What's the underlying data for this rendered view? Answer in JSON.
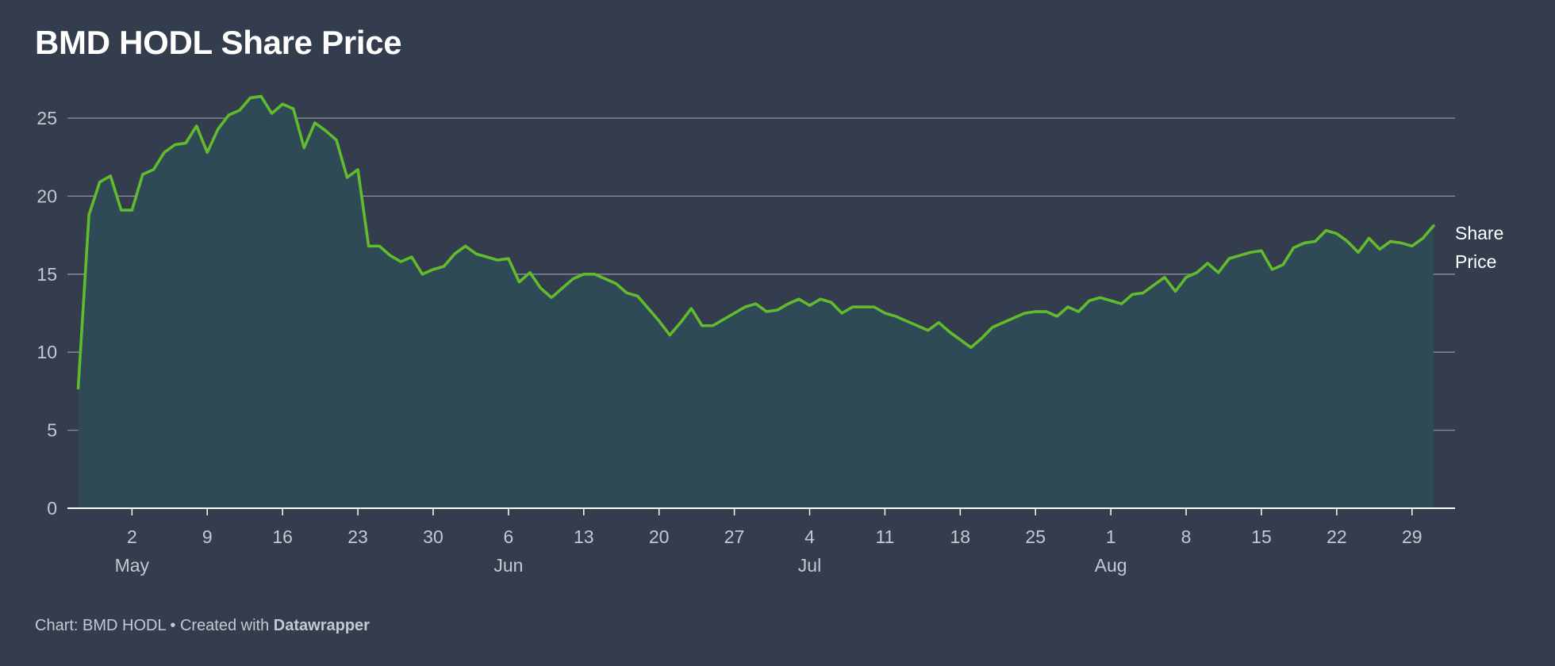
{
  "title": "BMD HODL Share Price",
  "footer": {
    "prefix": "Chart: BMD HODL • Created with ",
    "brand": "Datawrapper"
  },
  "colors": {
    "background": "#333d4e",
    "line": "#62bb2c",
    "area": "#2d4a56",
    "grid": "#8d9299",
    "axis_text": "#c4c9d1",
    "baseline": "#ffffff"
  },
  "chart_data": {
    "type": "area",
    "x_scale": "time",
    "year": 2022,
    "xlim": [
      "2022-04-26",
      "2022-09-02"
    ],
    "ylim": [
      0,
      25
    ],
    "yticks": [
      0,
      5,
      10,
      15,
      20,
      25
    ],
    "grid": true,
    "legend": "right-end",
    "x_tick_labels": [
      {
        "date": "2022-05-02",
        "label": "2",
        "month": "May"
      },
      {
        "date": "2022-05-09",
        "label": "9"
      },
      {
        "date": "2022-05-16",
        "label": "16"
      },
      {
        "date": "2022-05-23",
        "label": "23"
      },
      {
        "date": "2022-05-30",
        "label": "30"
      },
      {
        "date": "2022-06-06",
        "label": "6",
        "month": "Jun"
      },
      {
        "date": "2022-06-13",
        "label": "13"
      },
      {
        "date": "2022-06-20",
        "label": "20"
      },
      {
        "date": "2022-06-27",
        "label": "27"
      },
      {
        "date": "2022-07-04",
        "label": "4",
        "month": "Jul"
      },
      {
        "date": "2022-07-11",
        "label": "11"
      },
      {
        "date": "2022-07-18",
        "label": "18"
      },
      {
        "date": "2022-07-25",
        "label": "25"
      },
      {
        "date": "2022-08-01",
        "label": "1",
        "month": "Aug"
      },
      {
        "date": "2022-08-08",
        "label": "8"
      },
      {
        "date": "2022-08-15",
        "label": "15"
      },
      {
        "date": "2022-08-22",
        "label": "22"
      },
      {
        "date": "2022-08-29",
        "label": "29"
      }
    ],
    "series": [
      {
        "name": "Share Price",
        "label_lines": [
          "Share",
          "Price"
        ],
        "points": [
          [
            "2022-04-27",
            7.7
          ],
          [
            "2022-04-28",
            18.8
          ],
          [
            "2022-04-29",
            20.9
          ],
          [
            "2022-04-30",
            21.3
          ],
          [
            "2022-05-01",
            19.1
          ],
          [
            "2022-05-02",
            19.1
          ],
          [
            "2022-05-03",
            21.4
          ],
          [
            "2022-05-04",
            21.7
          ],
          [
            "2022-05-05",
            22.8
          ],
          [
            "2022-05-06",
            23.3
          ],
          [
            "2022-05-07",
            23.4
          ],
          [
            "2022-05-08",
            24.5
          ],
          [
            "2022-05-09",
            22.8
          ],
          [
            "2022-05-10",
            24.3
          ],
          [
            "2022-05-11",
            25.2
          ],
          [
            "2022-05-12",
            25.5
          ],
          [
            "2022-05-13",
            26.3
          ],
          [
            "2022-05-14",
            26.4
          ],
          [
            "2022-05-15",
            25.3
          ],
          [
            "2022-05-16",
            25.9
          ],
          [
            "2022-05-17",
            25.6
          ],
          [
            "2022-05-18",
            23.1
          ],
          [
            "2022-05-19",
            24.7
          ],
          [
            "2022-05-20",
            24.2
          ],
          [
            "2022-05-21",
            23.6
          ],
          [
            "2022-05-22",
            21.2
          ],
          [
            "2022-05-23",
            21.7
          ],
          [
            "2022-05-24",
            16.8
          ],
          [
            "2022-05-25",
            16.8
          ],
          [
            "2022-05-26",
            16.2
          ],
          [
            "2022-05-27",
            15.8
          ],
          [
            "2022-05-28",
            16.1
          ],
          [
            "2022-05-29",
            15.0
          ],
          [
            "2022-05-30",
            15.3
          ],
          [
            "2022-05-31",
            15.5
          ],
          [
            "2022-06-01",
            16.3
          ],
          [
            "2022-06-02",
            16.8
          ],
          [
            "2022-06-03",
            16.3
          ],
          [
            "2022-06-04",
            16.1
          ],
          [
            "2022-06-05",
            15.9
          ],
          [
            "2022-06-06",
            16.0
          ],
          [
            "2022-06-07",
            14.5
          ],
          [
            "2022-06-08",
            15.1
          ],
          [
            "2022-06-09",
            14.1
          ],
          [
            "2022-06-10",
            13.5
          ],
          [
            "2022-06-11",
            14.1
          ],
          [
            "2022-06-12",
            14.7
          ],
          [
            "2022-06-13",
            15.0
          ],
          [
            "2022-06-14",
            15.0
          ],
          [
            "2022-06-15",
            14.7
          ],
          [
            "2022-06-16",
            14.4
          ],
          [
            "2022-06-17",
            13.8
          ],
          [
            "2022-06-18",
            13.6
          ],
          [
            "2022-06-19",
            12.8
          ],
          [
            "2022-06-20",
            12.0
          ],
          [
            "2022-06-21",
            11.1
          ],
          [
            "2022-06-22",
            11.9
          ],
          [
            "2022-06-23",
            12.8
          ],
          [
            "2022-06-24",
            11.7
          ],
          [
            "2022-06-25",
            11.7
          ],
          [
            "2022-06-26",
            12.1
          ],
          [
            "2022-06-27",
            12.5
          ],
          [
            "2022-06-28",
            12.9
          ],
          [
            "2022-06-29",
            13.1
          ],
          [
            "2022-06-30",
            12.6
          ],
          [
            "2022-07-01",
            12.7
          ],
          [
            "2022-07-02",
            13.1
          ],
          [
            "2022-07-03",
            13.4
          ],
          [
            "2022-07-04",
            13.0
          ],
          [
            "2022-07-05",
            13.4
          ],
          [
            "2022-07-06",
            13.2
          ],
          [
            "2022-07-07",
            12.5
          ],
          [
            "2022-07-08",
            12.9
          ],
          [
            "2022-07-09",
            12.9
          ],
          [
            "2022-07-10",
            12.9
          ],
          [
            "2022-07-11",
            12.5
          ],
          [
            "2022-07-12",
            12.3
          ],
          [
            "2022-07-13",
            12.0
          ],
          [
            "2022-07-14",
            11.7
          ],
          [
            "2022-07-15",
            11.4
          ],
          [
            "2022-07-16",
            11.9
          ],
          [
            "2022-07-17",
            11.3
          ],
          [
            "2022-07-18",
            10.8
          ],
          [
            "2022-07-19",
            10.3
          ],
          [
            "2022-07-20",
            10.9
          ],
          [
            "2022-07-21",
            11.6
          ],
          [
            "2022-07-22",
            11.9
          ],
          [
            "2022-07-23",
            12.2
          ],
          [
            "2022-07-24",
            12.5
          ],
          [
            "2022-07-25",
            12.6
          ],
          [
            "2022-07-26",
            12.6
          ],
          [
            "2022-07-27",
            12.3
          ],
          [
            "2022-07-28",
            12.9
          ],
          [
            "2022-07-29",
            12.6
          ],
          [
            "2022-07-30",
            13.3
          ],
          [
            "2022-07-31",
            13.5
          ],
          [
            "2022-08-01",
            13.3
          ],
          [
            "2022-08-02",
            13.1
          ],
          [
            "2022-08-03",
            13.7
          ],
          [
            "2022-08-04",
            13.8
          ],
          [
            "2022-08-05",
            14.3
          ],
          [
            "2022-08-06",
            14.8
          ],
          [
            "2022-08-07",
            13.9
          ],
          [
            "2022-08-08",
            14.8
          ],
          [
            "2022-08-09",
            15.1
          ],
          [
            "2022-08-10",
            15.7
          ],
          [
            "2022-08-11",
            15.1
          ],
          [
            "2022-08-12",
            16.0
          ],
          [
            "2022-08-13",
            16.2
          ],
          [
            "2022-08-14",
            16.4
          ],
          [
            "2022-08-15",
            16.5
          ],
          [
            "2022-08-16",
            15.3
          ],
          [
            "2022-08-17",
            15.6
          ],
          [
            "2022-08-18",
            16.7
          ],
          [
            "2022-08-19",
            17.0
          ],
          [
            "2022-08-20",
            17.1
          ],
          [
            "2022-08-21",
            17.8
          ],
          [
            "2022-08-22",
            17.6
          ],
          [
            "2022-08-23",
            17.1
          ],
          [
            "2022-08-24",
            16.4
          ],
          [
            "2022-08-25",
            17.3
          ],
          [
            "2022-08-26",
            16.6
          ],
          [
            "2022-08-27",
            17.1
          ],
          [
            "2022-08-28",
            17.0
          ],
          [
            "2022-08-29",
            16.8
          ],
          [
            "2022-08-30",
            17.3
          ],
          [
            "2022-08-31",
            18.1
          ]
        ]
      }
    ]
  }
}
